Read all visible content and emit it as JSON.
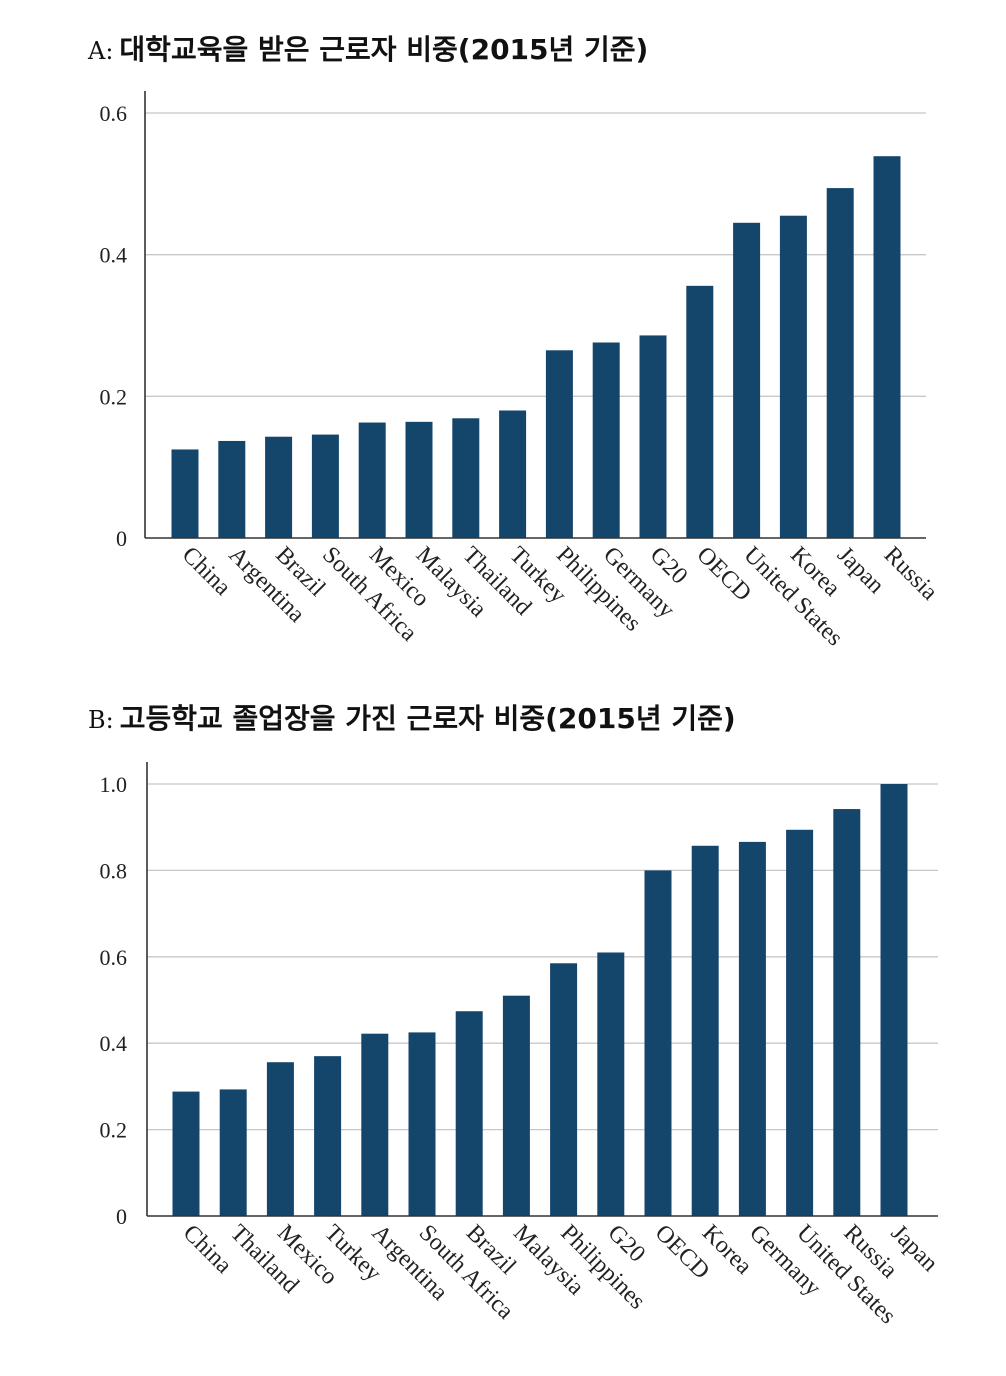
{
  "panels": [
    {
      "prefix": "A:",
      "title": "대학교육을 받은 근로자 비중(2015년 기준)",
      "chart_data": {
        "type": "bar",
        "categories": [
          "China",
          "Argentina",
          "Brazil",
          "South Africa",
          "Mexico",
          "Malaysia",
          "Thailand",
          "Turkey",
          "Philippines",
          "Germany",
          "G20",
          "OECD",
          "United States",
          "Korea",
          "Japan",
          "Russia"
        ],
        "values": [
          0.125,
          0.137,
          0.143,
          0.146,
          0.163,
          0.164,
          0.169,
          0.18,
          0.265,
          0.276,
          0.286,
          0.356,
          0.445,
          0.455,
          0.494,
          0.539
        ],
        "yticks": [
          0,
          0.2,
          0.4,
          0.6
        ],
        "ytick_labels": [
          "0",
          "0.2",
          "0.4",
          "0.6"
        ],
        "ylim": [
          0,
          0.6
        ],
        "bar_color": "#14466b"
      }
    },
    {
      "prefix": "B:",
      "title": "고등학교 졸업장을 가진 근로자 비중(2015년 기준)",
      "chart_data": {
        "type": "bar",
        "categories": [
          "China",
          "Thailand",
          "Mexico",
          "Turkey",
          "Argentina",
          "South Africa",
          "Brazil",
          "Malaysia",
          "Philippines",
          "G20",
          "OECD",
          "Korea",
          "Germany",
          "United States",
          "Russia",
          "Japan"
        ],
        "values": [
          0.288,
          0.293,
          0.356,
          0.37,
          0.422,
          0.425,
          0.474,
          0.51,
          0.585,
          0.61,
          0.8,
          0.857,
          0.866,
          0.894,
          0.942,
          1.0
        ],
        "yticks": [
          0,
          0.2,
          0.4,
          0.6,
          0.8,
          1.0
        ],
        "ytick_labels": [
          "0",
          "0.2",
          "0.4",
          "0.6",
          "0.8",
          "1.0"
        ],
        "ylim": [
          0,
          1.0
        ],
        "bar_color": "#14466b"
      }
    }
  ]
}
